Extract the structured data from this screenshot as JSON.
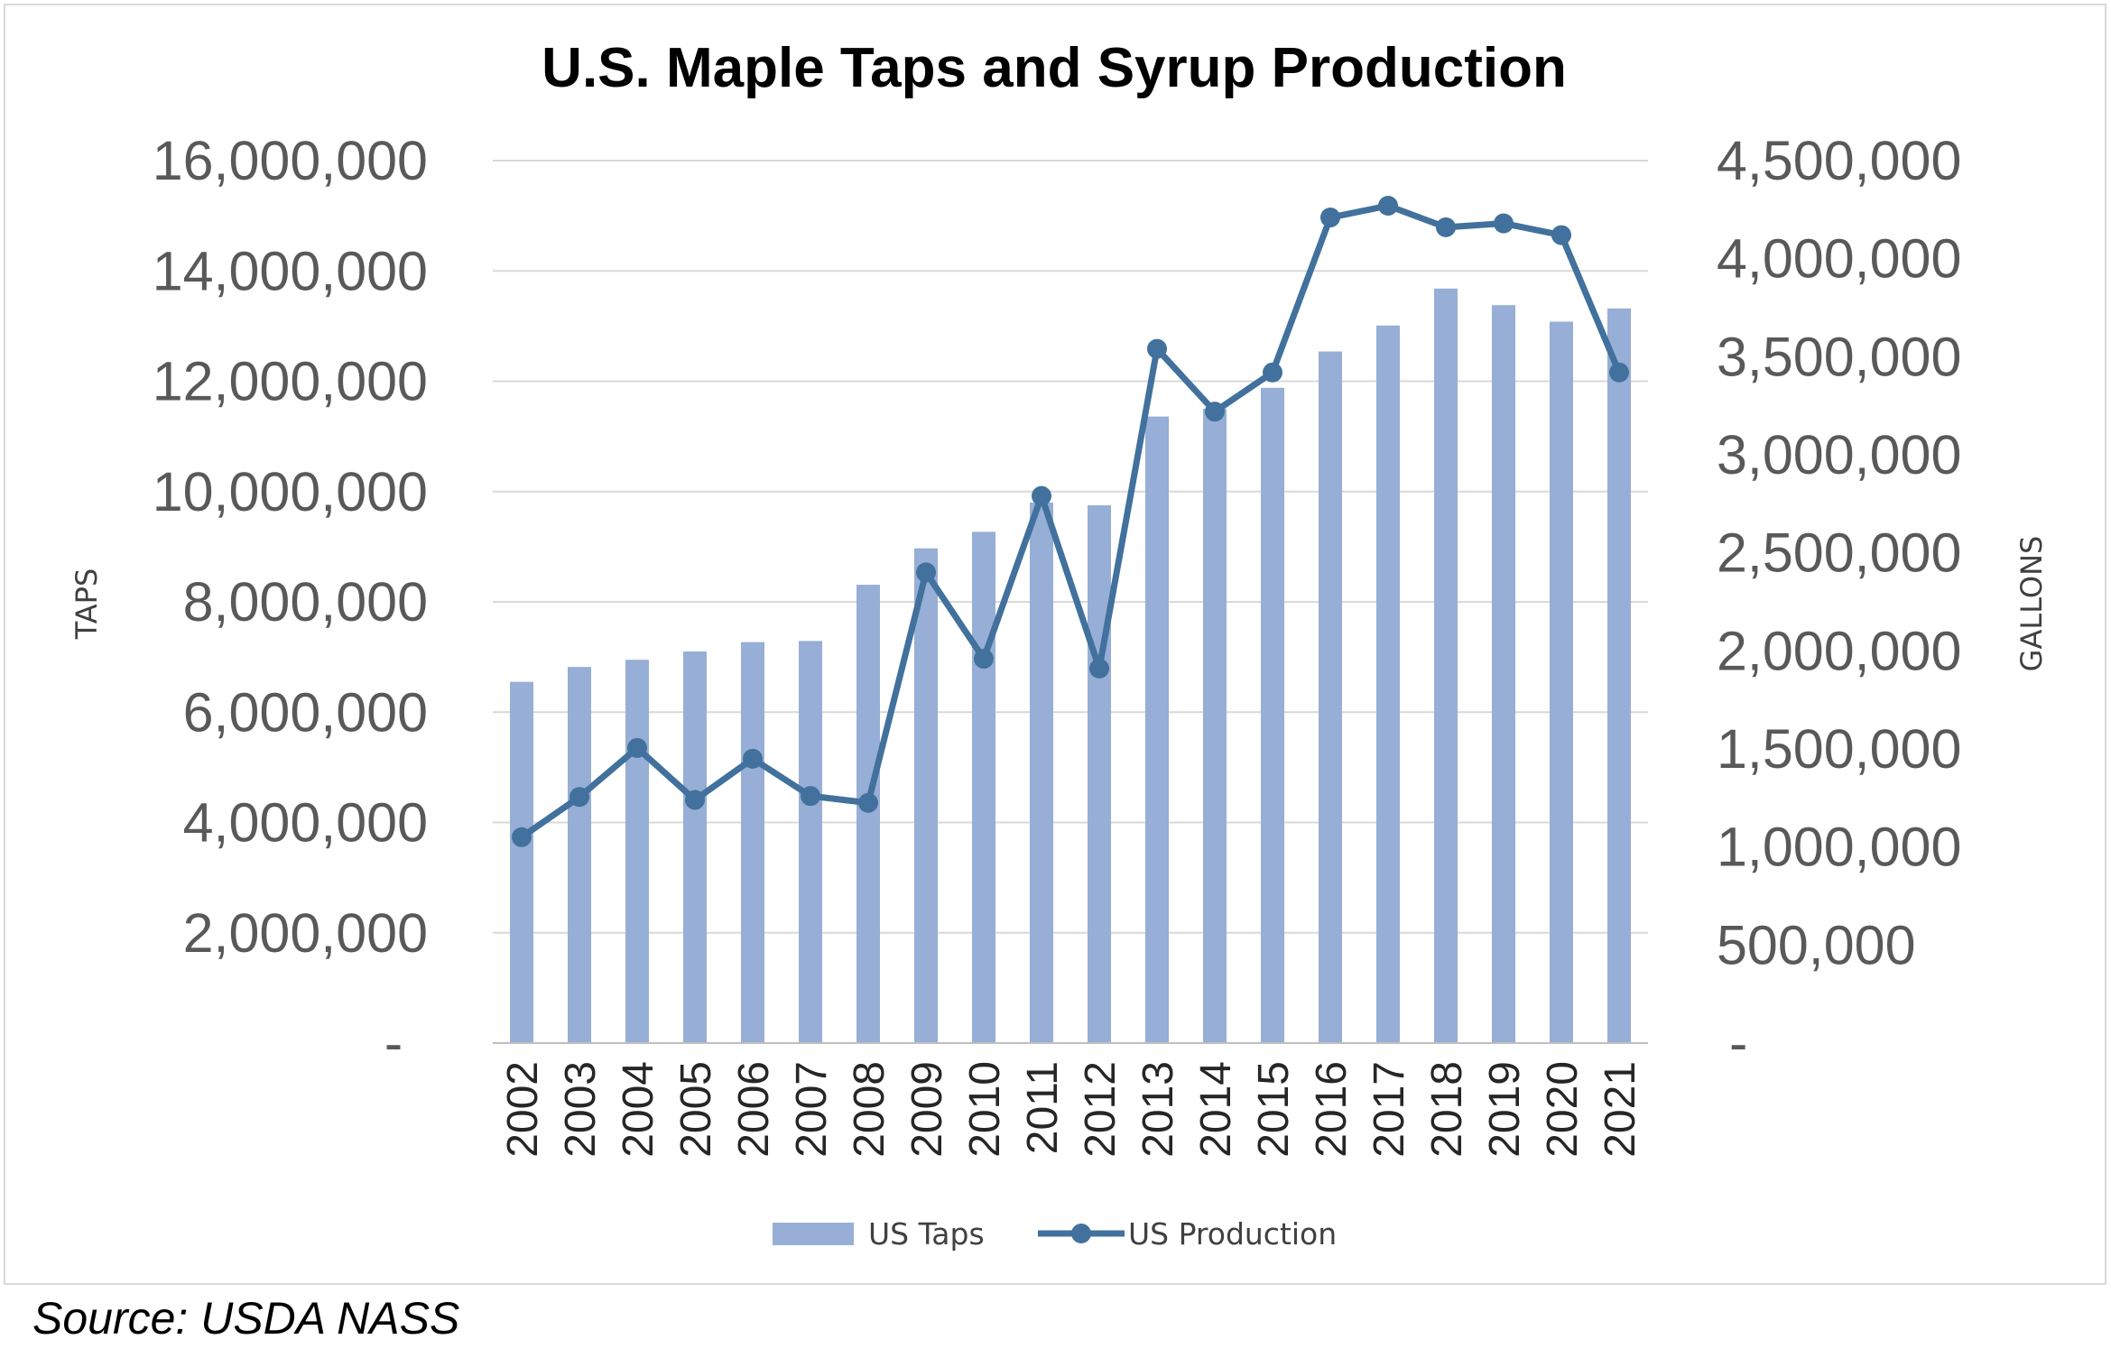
{
  "colors": {
    "bar": "#97aed6",
    "line": "#41719c",
    "grid": "#d9d9d9",
    "axis": "#bfbfbf"
  },
  "source": "Source: USDA NASS",
  "chart_data": {
    "type": "bar",
    "title": "U.S. Maple Taps and Syrup Production",
    "ylabel": "TAPS",
    "y2label": "GALLONS",
    "categories": [
      "2002",
      "2003",
      "2004",
      "2005",
      "2006",
      "2007",
      "2008",
      "2009",
      "2010",
      "2011",
      "2012",
      "2013",
      "2014",
      "2015",
      "2016",
      "2017",
      "2018",
      "2019",
      "2020",
      "2021"
    ],
    "ylim": [
      0,
      16000000
    ],
    "y2lim": [
      0,
      4500000
    ],
    "yticks": [
      {
        "value": 0,
        "label": "-"
      },
      {
        "value": 2000000,
        "label": "2,000,000"
      },
      {
        "value": 4000000,
        "label": "4,000,000"
      },
      {
        "value": 6000000,
        "label": "6,000,000"
      },
      {
        "value": 8000000,
        "label": "8,000,000"
      },
      {
        "value": 10000000,
        "label": "10,000,000"
      },
      {
        "value": 12000000,
        "label": "12,000,000"
      },
      {
        "value": 14000000,
        "label": "14,000,000"
      },
      {
        "value": 16000000,
        "label": "16,000,000"
      }
    ],
    "y2ticks": [
      {
        "value": 0,
        "label": "-"
      },
      {
        "value": 500000,
        "label": "500,000"
      },
      {
        "value": 1000000,
        "label": "1,000,000"
      },
      {
        "value": 1500000,
        "label": "1,500,000"
      },
      {
        "value": 2000000,
        "label": "2,000,000"
      },
      {
        "value": 2500000,
        "label": "2,500,000"
      },
      {
        "value": 3000000,
        "label": "3,000,000"
      },
      {
        "value": 3500000,
        "label": "3,500,000"
      },
      {
        "value": 4000000,
        "label": "4,000,000"
      },
      {
        "value": 4500000,
        "label": "4,500,000"
      }
    ],
    "grid": true,
    "legend_position": "bottom",
    "series": [
      {
        "name": "US Taps",
        "type": "bar",
        "axis": "left",
        "values": [
          6550000,
          6820000,
          6950000,
          7100000,
          7270000,
          7290000,
          8310000,
          8970000,
          9270000,
          9800000,
          9750000,
          11360000,
          11500000,
          11880000,
          12540000,
          13010000,
          13680000,
          13380000,
          13080000,
          13320000
        ]
      },
      {
        "name": "US Production",
        "type": "line",
        "axis": "right",
        "values": [
          1050000,
          1255000,
          1505000,
          1240000,
          1450000,
          1260000,
          1225000,
          2400000,
          1960000,
          2790000,
          1910000,
          3540000,
          3220000,
          3420000,
          4210000,
          4270000,
          4160000,
          4180000,
          4120000,
          3420000
        ]
      }
    ]
  }
}
